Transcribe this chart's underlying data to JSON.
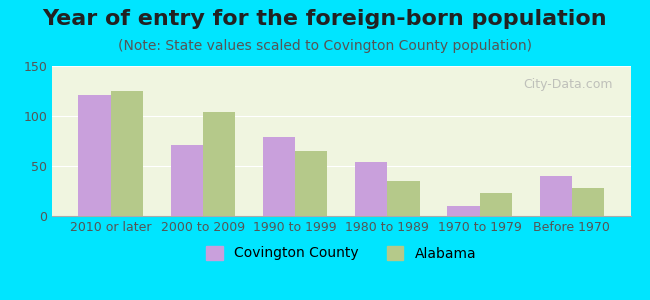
{
  "title": "Year of entry for the foreign-born population",
  "subtitle": "(Note: State values scaled to Covington County population)",
  "categories": [
    "2010 or later",
    "2000 to 2009",
    "1990 to 1999",
    "1980 to 1989",
    "1970 to 1979",
    "Before 1970"
  ],
  "covington_values": [
    121,
    71,
    79,
    54,
    10,
    40
  ],
  "alabama_values": [
    125,
    104,
    65,
    35,
    23,
    28
  ],
  "covington_color": "#c9a0dc",
  "alabama_color": "#b5c98a",
  "background_outer": "#00e5ff",
  "background_inner": "#f0f5e0",
  "ylim": [
    0,
    150
  ],
  "yticks": [
    0,
    50,
    100,
    150
  ],
  "bar_width": 0.35,
  "legend_labels": [
    "Covington County",
    "Alabama"
  ],
  "watermark": "City-Data.com",
  "title_fontsize": 16,
  "subtitle_fontsize": 10,
  "tick_fontsize": 9,
  "legend_fontsize": 10
}
